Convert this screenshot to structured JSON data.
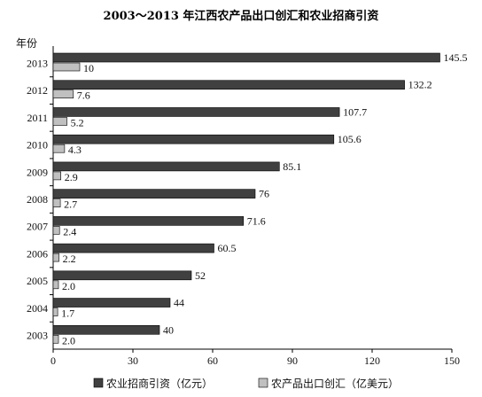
{
  "chart_data": {
    "type": "bar",
    "orientation": "horizontal",
    "title": "2003～2013 年江西农产品出口创汇和农业招商引资",
    "ylabel": "年份",
    "xlabel": "",
    "categories": [
      "2013",
      "2012",
      "2011",
      "2010",
      "2009",
      "2008",
      "2007",
      "2006",
      "2005",
      "2004",
      "2003"
    ],
    "series": [
      {
        "name": "农业招商引资（亿元）",
        "color": "#404040",
        "values": [
          145.5,
          132.2,
          107.7,
          105.6,
          85.1,
          76,
          71.6,
          60.5,
          52,
          44,
          40
        ],
        "labels": [
          "145.5",
          "132.2",
          "107.7",
          "105.6",
          "85.1",
          "76",
          "71.6",
          "60.5",
          "52",
          "44",
          "40"
        ]
      },
      {
        "name": "农产品出口创汇（亿美元）",
        "color": "#c0c0c0",
        "values": [
          10,
          7.6,
          5.2,
          4.3,
          2.9,
          2.7,
          2.4,
          2.2,
          2.0,
          1.7,
          2.0
        ],
        "labels": [
          "10",
          "7.6",
          "5.2",
          "4.3",
          "2.9",
          "2.7",
          "2.4",
          "2.2",
          "2.0",
          "1.7",
          "2.0"
        ]
      }
    ],
    "xlim": [
      0,
      150
    ],
    "xticks": [
      "0",
      "30",
      "60",
      "90",
      "120",
      "150"
    ],
    "legend_position": "bottom",
    "grid": false
  }
}
